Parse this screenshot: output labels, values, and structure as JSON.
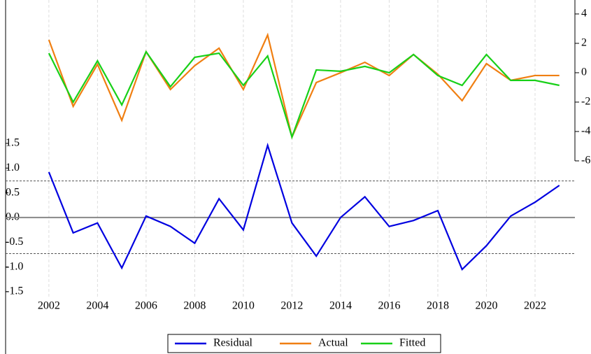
{
  "chart_data": {
    "type": "line",
    "x": [
      2002,
      2003,
      2004,
      2005,
      2006,
      2007,
      2008,
      2009,
      2010,
      2011,
      2012,
      2013,
      2014,
      2015,
      2016,
      2017,
      2018,
      2019,
      2020,
      2021,
      2022,
      2023
    ],
    "series": [
      {
        "name": "Residual",
        "color": "#0000e0",
        "axis": "y",
        "values": [
          0.92,
          -0.31,
          -0.11,
          -1.02,
          0.03,
          -0.18,
          -0.52,
          0.38,
          -0.25,
          1.46,
          -0.11,
          -0.78,
          0.0,
          0.42,
          -0.18,
          -0.06,
          0.14,
          -1.05,
          -0.57,
          0.03,
          0.31,
          0.65
        ]
      },
      {
        "name": "Actual",
        "color": "#f07f12",
        "axis": "y2",
        "values": [
          2.24,
          -2.29,
          0.57,
          -3.24,
          1.43,
          -1.14,
          0.48,
          1.67,
          -1.14,
          2.57,
          -4.38,
          -0.67,
          0.0,
          0.71,
          -0.19,
          1.24,
          -0.1,
          -1.9,
          0.62,
          -0.52,
          -0.19,
          -0.19
        ]
      },
      {
        "name": "Fitted",
        "color": "#18d018",
        "axis": "y2",
        "values": [
          1.33,
          -2.0,
          0.81,
          -2.19,
          1.43,
          -0.95,
          1.05,
          1.33,
          -0.86,
          1.14,
          -4.38,
          0.19,
          0.1,
          0.43,
          0.0,
          1.24,
          -0.19,
          -0.86,
          1.24,
          -0.52,
          -0.52,
          -0.86
        ]
      }
    ],
    "xlim": [
      2000.22,
      2023.64
    ],
    "xticks": [
      2002,
      2004,
      2006,
      2008,
      2010,
      2012,
      2014,
      2016,
      2018,
      2020,
      2022
    ],
    "ylim": [
      -1.6,
      4.4
    ],
    "yticks": [
      1.5,
      {
        "value": 1,
        "label": "1.0"
      },
      0.5,
      {
        "value": 0,
        "label": "0.0"
      },
      -0.5,
      {
        "value": -1,
        "label": "-1.0"
      },
      -1.5
    ],
    "y2lim": [
      -15.24,
      4.95
    ],
    "y2ticks": [
      4,
      2,
      0,
      -2,
      -4,
      -6
    ],
    "std_band": [
      -0.73,
      0.74
    ],
    "grid": true,
    "legend": "bottom"
  }
}
